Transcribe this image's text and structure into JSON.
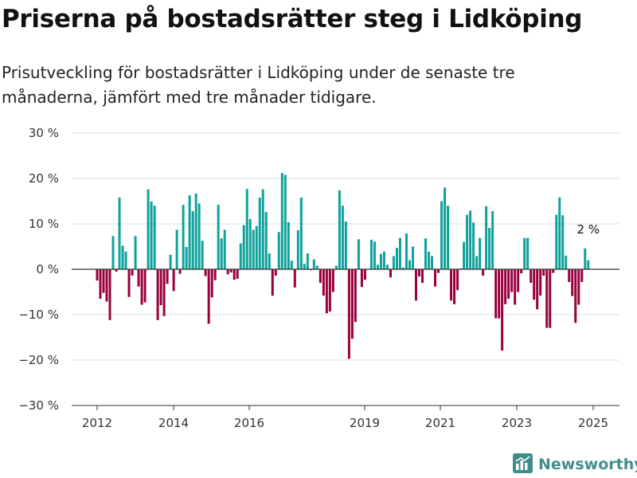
{
  "title": "Priserna på bostadsrätter steg i Lidköping",
  "subtitle": "Prisutveckling för bostadsrätter i Lidköping under de senaste tre månaderna, jämfört med tre månader tidigare.",
  "brand": {
    "name": "Newsworthy",
    "icon": "bar-chart-logo-icon"
  },
  "colors": {
    "positive": "#0fa29a",
    "negative": "#99003d",
    "grid": "#dcdcdc",
    "zero_line": "#333333"
  },
  "chart_data": {
    "type": "bar",
    "y_unit": "%",
    "ylim": [
      -30,
      30
    ],
    "y_ticks": [
      {
        "value": 30,
        "label": "30 %"
      },
      {
        "value": 20,
        "label": "20 %"
      },
      {
        "value": 10,
        "label": "10 %"
      },
      {
        "value": 0,
        "label": "0 %"
      },
      {
        "value": -10,
        "label": "−10 %"
      },
      {
        "value": -20,
        "label": "−20 %"
      },
      {
        "value": -30,
        "label": "−30 %"
      }
    ],
    "x_ticks": [
      "2012",
      "2014",
      "2016",
      "2019",
      "2021",
      "2023",
      "2025"
    ],
    "grid": "horizontal",
    "annotation": "2 %",
    "values": [
      -2.5,
      -6.5,
      -5.2,
      -7.1,
      -11.2,
      7.3,
      -0.5,
      15.8,
      5.2,
      3.9,
      -6.1,
      -1.4,
      7.3,
      -3.8,
      -7.8,
      -7.3,
      17.6,
      14.9,
      14.0,
      -11.2,
      -7.9,
      -10.3,
      -3.2,
      3.2,
      -4.8,
      8.7,
      -1.0,
      14.2,
      4.9,
      16.3,
      12.8,
      16.7,
      14.5,
      6.3,
      -1.5,
      -12.0,
      -6.2,
      -2.4,
      14.2,
      6.8,
      8.7,
      -1.1,
      -0.7,
      -2.3,
      -2.1,
      5.7,
      9.7,
      17.7,
      11.1,
      8.7,
      9.5,
      15.8,
      17.6,
      12.6,
      3.5,
      -5.8,
      -1.4,
      8.2,
      21.2,
      20.8,
      10.4,
      1.9,
      -4.0,
      8.6,
      15.8,
      1.2,
      3.5,
      -0.2,
      2.2,
      0.8,
      -3.0,
      -5.8,
      -9.7,
      -9.3,
      -5.0,
      0.8,
      17.4,
      14.0,
      10.5,
      -19.7,
      -15.3,
      -11.6,
      6.6,
      -3.9,
      -2.3,
      0.1,
      6.5,
      6.1,
      1.0,
      3.4,
      3.9,
      1.0,
      -1.8,
      2.9,
      4.7,
      6.9,
      0.4,
      7.9,
      2.0,
      5.0,
      -6.9,
      -1.6,
      -3.0,
      6.8,
      3.9,
      2.9,
      -3.8,
      -0.8,
      15.0,
      18.0,
      14.0,
      -6.9,
      -7.7,
      -4.6,
      0.2,
      6.0,
      12.0,
      12.9,
      10.3,
      2.9,
      6.9,
      -1.4,
      13.9,
      9.1,
      12.8,
      -10.8,
      -10.8,
      -17.9,
      -7.7,
      -6.5,
      -5.0,
      -7.8,
      -5.0,
      -0.9,
      6.9,
      6.9,
      -3.0,
      -6.7,
      -8.8,
      -5.8,
      -1.4,
      -12.9,
      -12.9,
      -0.8,
      12.0,
      15.8,
      11.9,
      3.0,
      -2.8,
      -5.9,
      -11.8,
      -7.8,
      -2.8,
      4.6,
      2.0
    ]
  }
}
